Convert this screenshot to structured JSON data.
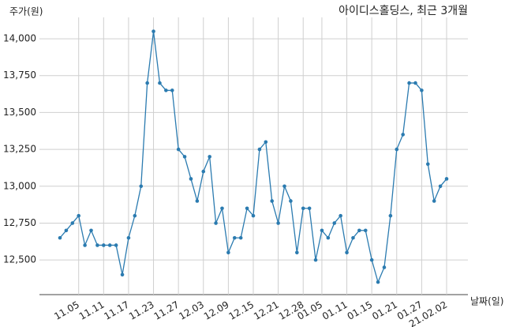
{
  "chart_data": {
    "type": "line",
    "title": "아이디스홀딩스, 최근 3개월",
    "y_label": "주가(원)",
    "x_label": "날짜(일)",
    "categories": [
      null,
      null,
      null,
      "11.05",
      null,
      null,
      null,
      "11.11",
      null,
      null,
      null,
      "11.17",
      null,
      null,
      null,
      "11.23",
      null,
      null,
      null,
      "11.27",
      null,
      null,
      null,
      "12.03",
      null,
      null,
      null,
      "12.09",
      null,
      null,
      null,
      "12.15",
      null,
      null,
      null,
      "12.21",
      null,
      null,
      null,
      "12.28",
      null,
      null,
      "01.05",
      null,
      null,
      null,
      "01.11",
      null,
      null,
      null,
      "01.15",
      null,
      null,
      null,
      "01.21",
      null,
      null,
      null,
      "01.27",
      null,
      null,
      null,
      "21.02.02"
    ],
    "series": [
      {
        "name": "주가",
        "color": "#2b7bb0",
        "values": [
          12650,
          12700,
          12750,
          12800,
          12600,
          12700,
          12600,
          12600,
          12600,
          12600,
          12400,
          12650,
          12800,
          13000,
          13700,
          14050,
          13700,
          13650,
          13650,
          13250,
          13200,
          13050,
          12900,
          13100,
          13200,
          12750,
          12850,
          12550,
          12650,
          12650,
          12850,
          12800,
          13250,
          13300,
          12900,
          12750,
          13000,
          12900,
          12550,
          12850,
          12850,
          12500,
          12700,
          12650,
          12750,
          12800,
          12550,
          12650,
          12700,
          12700,
          12500,
          12350,
          12450,
          12800,
          13250,
          13350,
          13700,
          13700,
          13650,
          13150,
          12900,
          13000,
          13050
        ]
      }
    ],
    "ylim": [
      12265,
      14145
    ],
    "yticks": [
      {
        "value": 12500,
        "label": "12,500"
      },
      {
        "value": 12750,
        "label": "12,750"
      },
      {
        "value": 13000,
        "label": "13,000"
      },
      {
        "value": 13250,
        "label": "13,250"
      },
      {
        "value": 13500,
        "label": "13,500"
      },
      {
        "value": 13750,
        "label": "13,750"
      },
      {
        "value": 14000,
        "label": "14,000"
      }
    ],
    "grid": true
  }
}
